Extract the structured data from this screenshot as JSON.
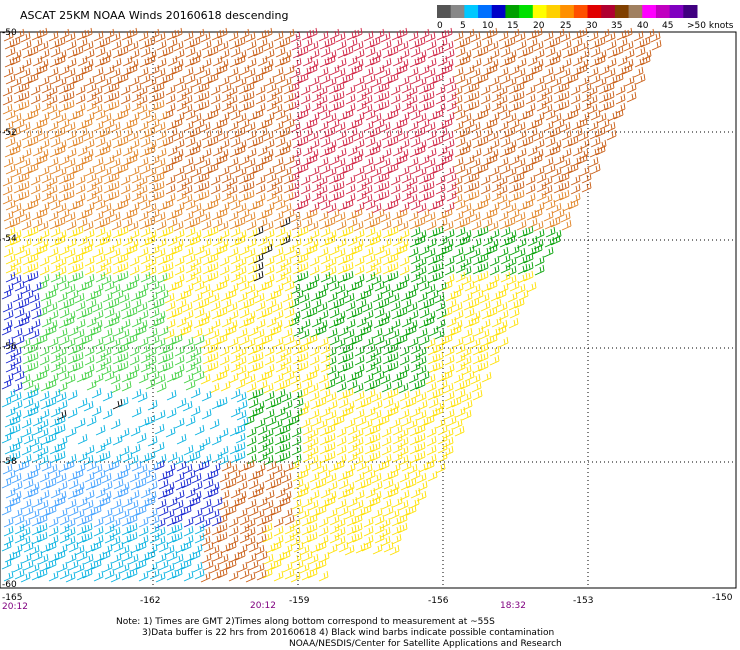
{
  "title": "ASCAT 25KM NOAA Winds 20160618 descending",
  "legend": {
    "unit_label": ">50 knots",
    "ticks": [
      "0",
      "5",
      "10",
      "15",
      "20",
      "25",
      "30",
      "35",
      "40",
      "45"
    ],
    "colors": [
      "#555555",
      "#888888",
      "#00c8ff",
      "#0070ff",
      "#0000c8",
      "#00a000",
      "#00e000",
      "#ffff00",
      "#ffd000",
      "#ff9000",
      "#ff5000",
      "#e00000",
      "#b00030",
      "#804000",
      "#a08060",
      "#ff00ff",
      "#c000c0",
      "#8000c0",
      "#400080"
    ]
  },
  "axes": {
    "lon_ticks": [
      "-165",
      "-162",
      "-159",
      "-156",
      "-153",
      "-150"
    ],
    "lat_ticks": [
      "-50",
      "-52",
      "-54",
      "-56",
      "-58",
      "-60"
    ]
  },
  "times": [
    "20:12",
    "20:12",
    "18:32"
  ],
  "notes": [
    "Note: 1) Times are GMT 2)Times along bottom correspond to measurement at ~55S",
    "3)Data buffer is 22 hrs from 20160618 4) Black wind barbs indicate possible contamination",
    "NOAA/NESDIS/Center for Satellite Applications and Research"
  ],
  "colors": {
    "orange": "#e08020",
    "dark_orange": "#c85a10",
    "red": "#d02040",
    "yellow": "#ffe000",
    "green": "#00a000",
    "light_green": "#40d040",
    "blue": "#1020d0",
    "cyan": "#00b0e0",
    "light_blue": "#40a0ff",
    "black": "#000000"
  }
}
